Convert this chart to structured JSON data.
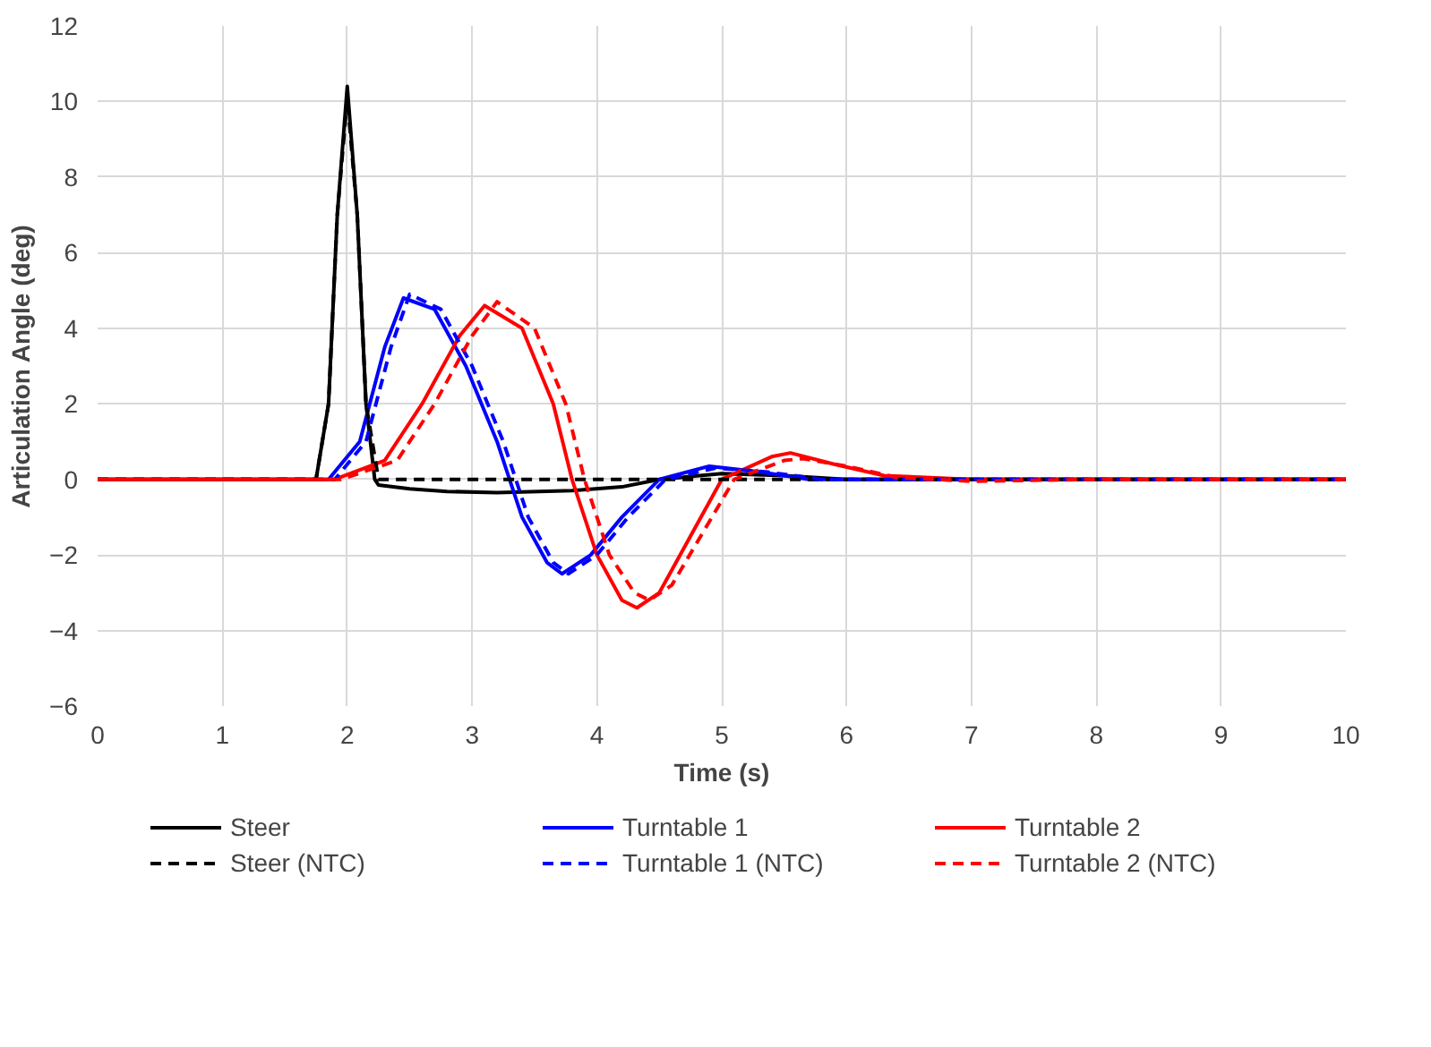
{
  "chart_data": {
    "type": "line",
    "xlabel": "Time (s)",
    "ylabel": "Articulation Angle (deg)",
    "xlim": [
      0,
      10
    ],
    "ylim": [
      -6,
      12
    ],
    "xticks": [
      0,
      1,
      2,
      3,
      4,
      5,
      6,
      7,
      8,
      9,
      10
    ],
    "yticks": [
      -6,
      -4,
      -2,
      0,
      2,
      4,
      6,
      8,
      10,
      12
    ],
    "grid": true,
    "legend": "bottom",
    "marker": "none",
    "series": [
      {
        "name": "Steer",
        "color": "#000000",
        "line_style": "solid",
        "x": [
          0,
          1.75,
          1.85,
          1.92,
          2.0,
          2.08,
          2.15,
          2.22,
          2.25,
          2.5,
          2.8,
          3.2,
          3.8,
          4.2,
          4.5,
          5.0,
          5.5,
          6.0,
          10
        ],
        "values": [
          0,
          0,
          2,
          7,
          10.4,
          7,
          2,
          0,
          -0.15,
          -0.25,
          -0.32,
          -0.35,
          -0.3,
          -0.2,
          0,
          0.15,
          0.1,
          0,
          0
        ]
      },
      {
        "name": "Turntable 1",
        "color": "#0000ff",
        "line_style": "solid",
        "x": [
          0,
          1.85,
          2.1,
          2.3,
          2.45,
          2.7,
          2.95,
          3.2,
          3.4,
          3.6,
          3.72,
          3.95,
          4.2,
          4.5,
          4.9,
          5.3,
          5.7,
          10
        ],
        "values": [
          0,
          0,
          1,
          3.5,
          4.8,
          4.5,
          3,
          1,
          -1,
          -2.2,
          -2.5,
          -2,
          -1,
          0,
          0.35,
          0.2,
          0,
          0
        ]
      },
      {
        "name": "Turntable 2",
        "color": "#ff0000",
        "line_style": "solid",
        "x": [
          0,
          1.9,
          2.3,
          2.6,
          2.9,
          3.1,
          3.4,
          3.65,
          3.8,
          4.0,
          4.2,
          4.32,
          4.5,
          4.75,
          5.0,
          5.4,
          5.55,
          5.9,
          6.3,
          7,
          10
        ],
        "values": [
          0,
          0,
          0.5,
          2,
          3.8,
          4.6,
          4,
          2,
          0,
          -2,
          -3.2,
          -3.4,
          -3,
          -1.5,
          0,
          0.6,
          0.7,
          0.4,
          0.1,
          0,
          0
        ]
      },
      {
        "name": "Steer (NTC)",
        "color": "#000000",
        "line_style": "dashed",
        "x": [
          0,
          1.75,
          1.85,
          1.92,
          2.0,
          2.08,
          2.15,
          2.25,
          10
        ],
        "values": [
          0,
          0,
          2,
          7,
          10.1,
          7,
          2,
          0,
          0
        ]
      },
      {
        "name": "Turntable 1 (NTC)",
        "color": "#0000ff",
        "line_style": "dashed",
        "x": [
          0,
          1.9,
          2.15,
          2.35,
          2.5,
          2.75,
          3.0,
          3.25,
          3.45,
          3.65,
          3.77,
          4.0,
          4.25,
          4.55,
          4.95,
          5.35,
          5.8,
          10
        ],
        "values": [
          0,
          0,
          1,
          3.5,
          4.9,
          4.5,
          3,
          1,
          -1,
          -2.2,
          -2.5,
          -2,
          -1,
          0,
          0.3,
          0.2,
          0,
          0
        ]
      },
      {
        "name": "Turntable 2 (NTC)",
        "color": "#ff0000",
        "line_style": "dashed",
        "x": [
          0,
          1.95,
          2.4,
          2.7,
          3.0,
          3.2,
          3.5,
          3.75,
          3.9,
          4.1,
          4.3,
          4.42,
          4.6,
          4.85,
          5.1,
          5.5,
          5.65,
          6.0,
          6.4,
          7,
          8,
          10
        ],
        "values": [
          0,
          0,
          0.5,
          2,
          3.8,
          4.7,
          4,
          2,
          0,
          -2,
          -3,
          -3.2,
          -2.8,
          -1.4,
          0,
          0.5,
          0.55,
          0.35,
          0.05,
          -0.05,
          0,
          0
        ]
      }
    ]
  }
}
